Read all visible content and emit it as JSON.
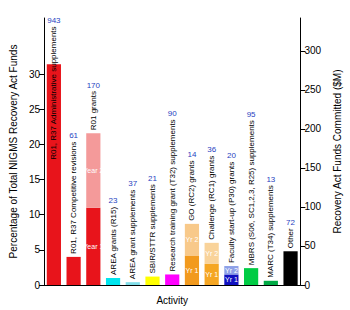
{
  "chart_data": {
    "type": "bar",
    "stacked": true,
    "x_label": "Activity",
    "y_label": "Percentage of Total NIGMS Recovery Act Funds",
    "y2_label": "Recovery Act Funds Committed ($M)",
    "categories": [
      "R01, R37 Administrative supplements",
      "R01, R37 Competitive revisions",
      "R01 grants",
      "AREA grants (R15)",
      "AREA grant supplements",
      "SBIR/STTR supplements",
      "Research training grant (T32) supplements",
      "GO (RC2) grants",
      "Challenge (RC1) grants",
      "Faculty start-up (P30) grants",
      "MBRS (S06, SC1,2,3, R25) supplements",
      "MARC (T34) supplements",
      "Other"
    ],
    "counts": [
      943,
      61,
      170,
      23,
      37,
      21,
      90,
      14,
      36,
      20,
      95,
      13,
      72
    ],
    "series": [
      {
        "values": [
          31.4,
          4,
          11,
          1,
          0.4,
          1.2,
          1.5,
          4.2,
          3,
          1.5,
          2.4,
          0.6,
          4.8
        ],
        "colors": [
          "#e8141b",
          "#e8141b",
          "#e8141b",
          "#00e5ee",
          "#7fdde8",
          "#ffff00",
          "#ff00ff",
          "#f29a1e",
          "#f5a623",
          "#1010c0",
          "#00cc44",
          "#00aa44",
          "#000000"
        ],
        "segment_labels": [
          null,
          null,
          "Year 1",
          null,
          null,
          null,
          null,
          "Yr 1",
          "Yr 1",
          "Yr 1",
          null,
          null,
          null
        ]
      },
      {
        "values": [
          null,
          null,
          10.6,
          null,
          null,
          null,
          null,
          4.5,
          3,
          1.2,
          null,
          null,
          null
        ],
        "colors": [
          null,
          null,
          "#f49a9a",
          null,
          null,
          null,
          null,
          "#f8c98a",
          "#f9d39a",
          "#8da0e8",
          null,
          null,
          null
        ],
        "segment_labels": [
          null,
          null,
          "Year 2",
          null,
          null,
          null,
          null,
          "Yr 2",
          "Yr 2",
          "Yr 2",
          null,
          null,
          null
        ]
      }
    ],
    "ylim": [
      0,
      38
    ],
    "yticks": [
      0,
      5,
      10,
      15,
      20,
      25,
      30
    ],
    "y2lim": [
      0,
      342
    ],
    "y2ticks": [
      0,
      50,
      100,
      150,
      200,
      250,
      300
    ],
    "grid": false,
    "tick_labels": "y"
  }
}
